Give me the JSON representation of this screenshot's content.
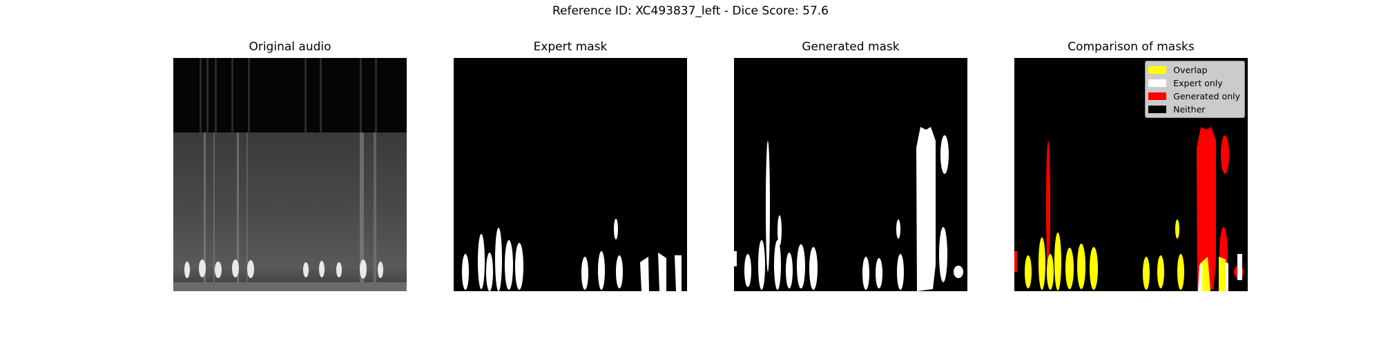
{
  "figure": {
    "suptitle": "Reference ID: XC493837_left - Dice Score: 57.6"
  },
  "panels": [
    {
      "title": "Original audio"
    },
    {
      "title": "Expert mask"
    },
    {
      "title": "Generated mask"
    },
    {
      "title": "Comparison of masks"
    }
  ],
  "legend": {
    "placement": "top-right",
    "items": [
      {
        "label": "Overlap",
        "color": "#ffff00"
      },
      {
        "label": "Expert only",
        "color": "#ffffff"
      },
      {
        "label": "Generated only",
        "color": "#ff0000"
      },
      {
        "label": "Neither",
        "color": "#000000"
      }
    ]
  },
  "colors": {
    "background": "#000000",
    "mask": "#ffffff",
    "overlap": "#ffff00",
    "generated_only": "#ff0000"
  }
}
